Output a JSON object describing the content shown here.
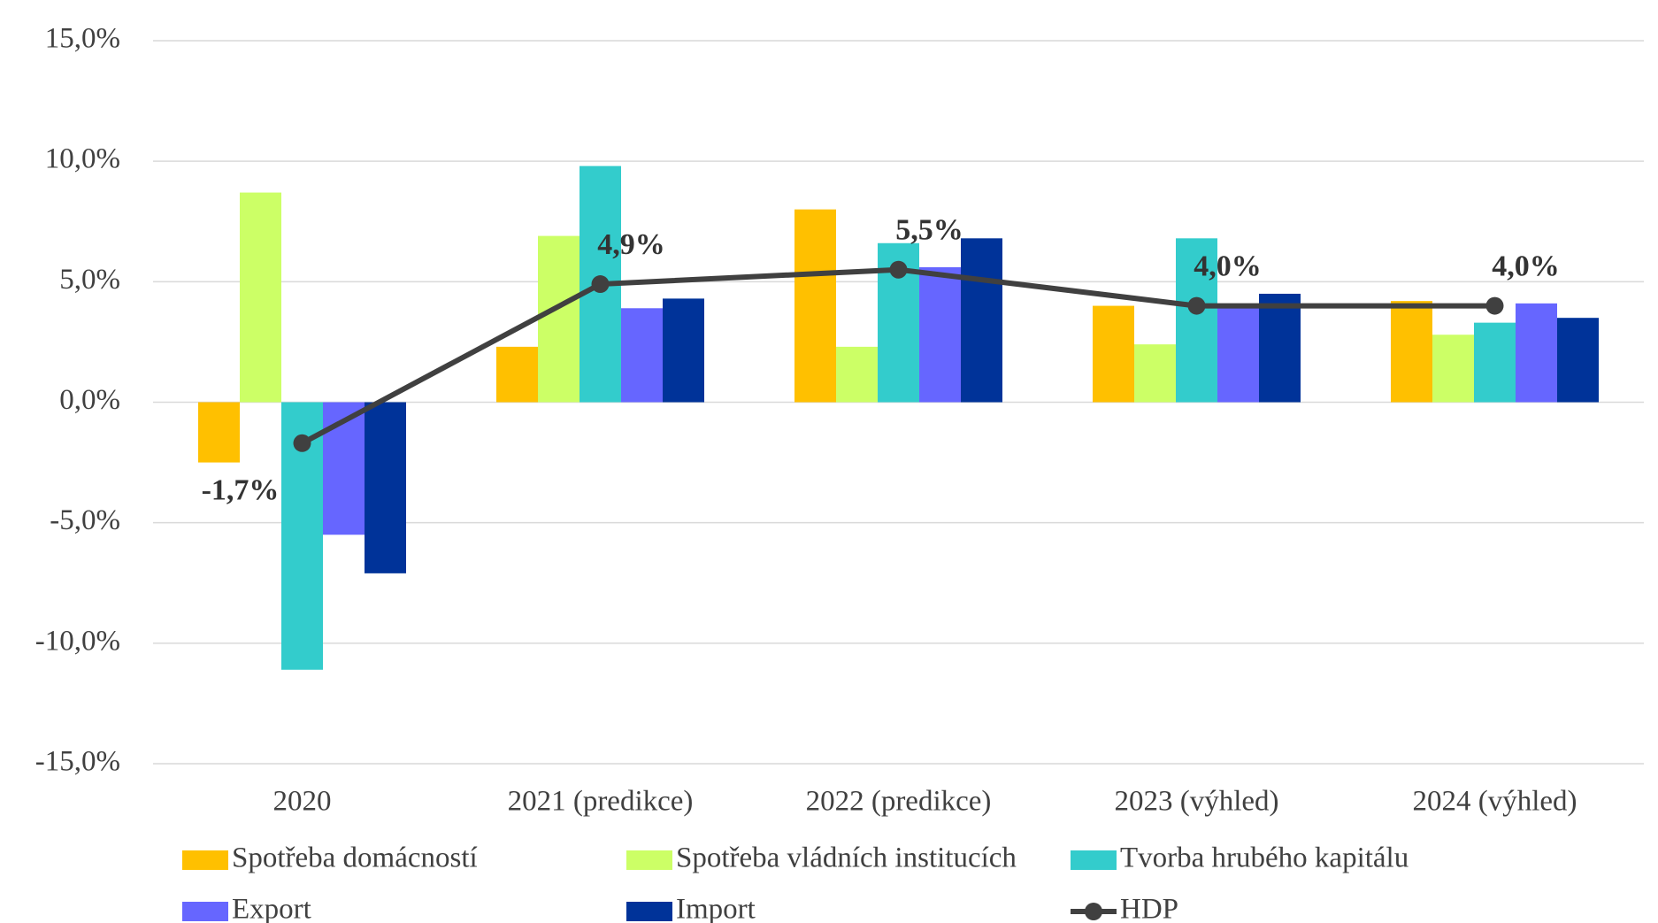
{
  "chart_data": {
    "type": "bar",
    "categories": [
      "2020",
      "2021 (predikce)",
      "2022 (predikce)",
      "2023 (výhled)",
      "2024 (výhled)"
    ],
    "series": [
      {
        "name": "Spotřeba domácností",
        "color": "#FFC000",
        "values": [
          -2.5,
          2.3,
          8.0,
          4.0,
          4.2
        ]
      },
      {
        "name": "Spotřeba vládních institucích",
        "color": "#CCFF66",
        "values": [
          8.7,
          6.9,
          2.3,
          2.4,
          2.8
        ]
      },
      {
        "name": "Tvorba hrubého kapitálu",
        "color": "#33CCCC",
        "values": [
          -11.1,
          9.8,
          6.6,
          6.8,
          3.3
        ]
      },
      {
        "name": "Export",
        "color": "#6666FF",
        "values": [
          -5.5,
          3.9,
          5.6,
          4.0,
          4.1
        ]
      },
      {
        "name": "Import",
        "color": "#003399",
        "values": [
          -7.1,
          4.3,
          6.8,
          4.5,
          3.5
        ]
      },
      {
        "name": "HDP",
        "color": "#404040",
        "type": "line",
        "values": [
          -1.7,
          4.9,
          5.5,
          4.0,
          4.0
        ],
        "value_labels": [
          "-1,7%",
          "4,9%",
          "5,5%",
          "4,0%",
          "4,0%"
        ]
      }
    ],
    "ylim": [
      -15,
      15
    ],
    "yticks": [
      {
        "value": -15,
        "label": "-15,0%"
      },
      {
        "value": -10,
        "label": "-10,0%"
      },
      {
        "value": -5,
        "label": "-5,0%"
      },
      {
        "value": 0,
        "label": "0,0%"
      },
      {
        "value": 5,
        "label": "5,0%"
      },
      {
        "value": 10,
        "label": "10,0%"
      },
      {
        "value": 15,
        "label": "15,0%"
      }
    ],
    "grid": true,
    "legend": "bottom"
  }
}
